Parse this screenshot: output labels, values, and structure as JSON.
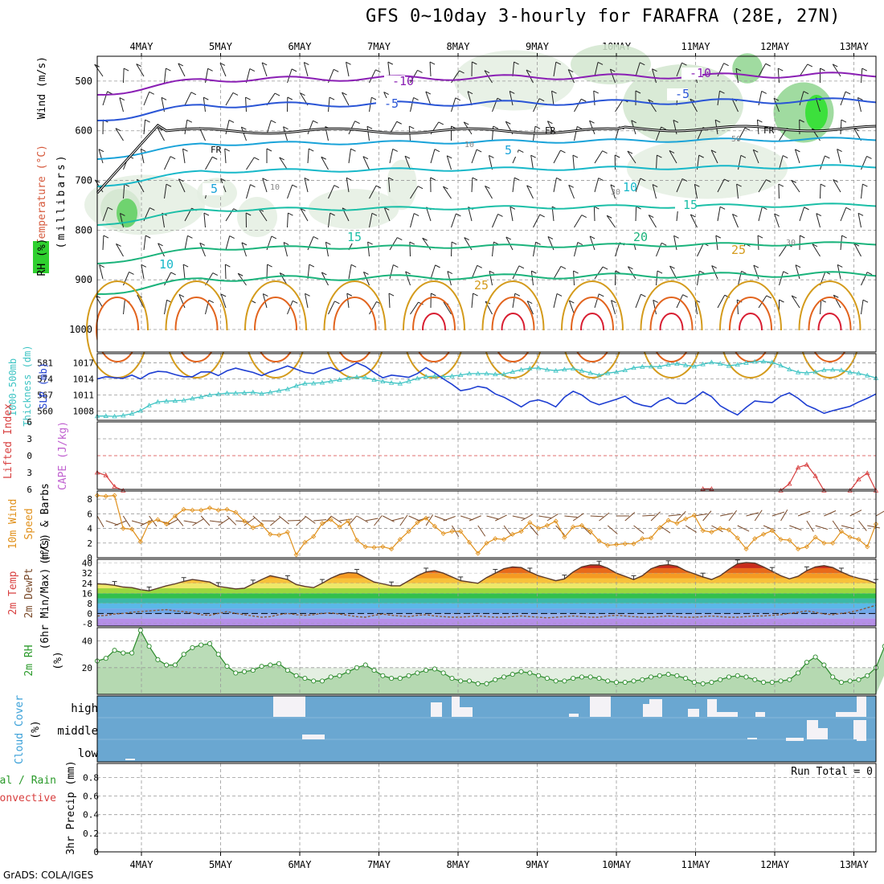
{
  "title": "GFS 0~10day 3-hourly for FARAFRA (28E, 27N)",
  "footer": "GrADS: COLA/IGES",
  "date_labels": [
    "4MAY",
    "5MAY",
    "6MAY",
    "7MAY",
    "8MAY",
    "9MAY",
    "10MAY",
    "11MAY",
    "12MAY",
    "13MAY"
  ],
  "chart_data": [
    {
      "type": "heatmap",
      "name": "pressure-profile",
      "ylabel_parts": [
        "Wind (m/s)",
        "Temperature (°C)",
        "RH (%)"
      ],
      "y_axis_label": "(millibars)",
      "y_ticks": [
        500,
        600,
        700,
        800,
        900,
        1000
      ],
      "ylim": [
        450,
        1000
      ],
      "freezing_label": "FR",
      "isotherm_labels": [
        {
          "text": "-10",
          "value": -10
        },
        {
          "text": "-5",
          "value": -5
        },
        {
          "text": "5",
          "value": 5
        },
        {
          "text": "10",
          "value": 10
        },
        {
          "text": "15",
          "value": 15
        },
        {
          "text": "20",
          "value": 20
        },
        {
          "text": "25",
          "value": 25
        }
      ],
      "rh_labels": [
        "10",
        "30",
        "50"
      ],
      "colors": {
        "m10": "#8a1fb4",
        "m5": "#2a55d6",
        "t5": "#1aa3d9",
        "t10": "#17b8c9",
        "t15": "#1bbfa7",
        "t20": "#1ab37b",
        "t25": "#d49b1c",
        "t30": "#e2641e",
        "t35": "#d81e32"
      }
    },
    {
      "type": "line",
      "name": "thickness-slp",
      "ylabel_left": "Thickness (dm)",
      "ylabel_left2": "1000-500mb",
      "ylabel_right": "SLP (mb)",
      "left_ticks": [
        560,
        567,
        574,
        581
      ],
      "right_ticks": [
        1008,
        1011,
        1014,
        1017
      ],
      "thickness_ylim": [
        556,
        585
      ],
      "slp_ylim": [
        1006.3,
        1018.7
      ],
      "thickness": [
        557.8,
        557.9,
        557.7,
        558.1,
        558.9,
        560.2,
        562.5,
        564.0,
        564.3,
        564.5,
        564.7,
        565.5,
        566.2,
        567.0,
        567.4,
        567.8,
        567.8,
        568.0,
        568.2,
        567.6,
        568.2,
        568.9,
        569.6,
        571.0,
        572.0,
        572.1,
        572.4,
        573.0,
        573.6,
        574.4,
        574.8,
        574.6,
        573.6,
        572.9,
        572.3,
        572.0,
        573.0,
        574.2,
        575.0,
        575.2,
        574.9,
        575.2,
        575.7,
        576.3,
        576.3,
        576.3,
        576.0,
        576.1,
        577.1,
        578.0,
        578.6,
        578.7,
        578.0,
        577.6,
        578.1,
        578.5,
        577.6,
        576.6,
        575.6,
        576.5,
        577.0,
        577.8,
        578.8,
        579.3,
        579.4,
        579.3,
        580.3,
        580.6,
        580.0,
        579.4,
        580.4,
        581.2,
        580.6,
        579.7,
        580.2,
        581.0,
        581.5,
        581.6,
        581.2,
        579.8,
        578.2,
        576.9,
        576.6,
        577.0,
        577.9,
        578.0,
        577.8,
        576.9,
        576.4,
        575.5,
        574.4
      ],
      "slp": [
        1014.0,
        1014.4,
        1014.2,
        1014.1,
        1014.7,
        1014.0,
        1015.0,
        1015.4,
        1015.3,
        1014.8,
        1014.4,
        1014.4,
        1015.3,
        1015.3,
        1014.6,
        1015.5,
        1016.0,
        1015.6,
        1015.2,
        1014.6,
        1015.3,
        1015.8,
        1016.4,
        1015.8,
        1015.2,
        1015.0,
        1015.7,
        1016.1,
        1015.4,
        1016.1,
        1017.0,
        1016.3,
        1015.2,
        1014.2,
        1014.7,
        1014.5,
        1014.3,
        1015.0,
        1016.1,
        1015.1,
        1014.0,
        1013.0,
        1011.8,
        1012.1,
        1012.6,
        1012.3,
        1011.2,
        1010.6,
        1009.7,
        1008.8,
        1009.8,
        1010.1,
        1009.6,
        1008.8,
        1010.6,
        1011.7,
        1011.0,
        1009.8,
        1009.2,
        1009.7,
        1010.2,
        1010.8,
        1009.6,
        1009.1,
        1008.8,
        1009.9,
        1010.5,
        1009.5,
        1009.4,
        1010.4,
        1011.6,
        1010.7,
        1009.0,
        1008.1,
        1007.3,
        1008.7,
        1009.9,
        1009.7,
        1009.6,
        1010.8,
        1011.4,
        1010.4,
        1009.1,
        1008.4,
        1007.6,
        1008.1,
        1008.5,
        1008.9,
        1009.7,
        1010.4,
        1011.2
      ]
    },
    {
      "type": "line",
      "name": "cape-lifted-index",
      "ylabel_a": "Lifted Index",
      "ylabel_b": "CAPE (J/kg)",
      "y_ticks": [
        -6,
        -3,
        0,
        3,
        6
      ],
      "ylim": [
        -6,
        6
      ],
      "lifted_index": [
        3.0,
        3.5,
        5.5,
        6.2,
        null,
        null,
        null,
        null,
        null,
        null,
        null,
        null,
        null,
        null,
        null,
        null,
        null,
        null,
        null,
        null,
        null,
        null,
        null,
        null,
        null,
        null,
        null,
        null,
        null,
        null,
        null,
        null,
        null,
        null,
        null,
        null,
        null,
        null,
        null,
        null,
        null,
        null,
        null,
        null,
        null,
        null,
        null,
        null,
        null,
        null,
        null,
        null,
        null,
        null,
        null,
        null,
        null,
        null,
        null,
        null,
        null,
        null,
        null,
        null,
        null,
        null,
        null,
        null,
        null,
        null,
        null,
        null,
        null,
        null,
        null,
        null,
        null,
        null,
        null,
        null,
        null,
        null,
        null,
        null,
        null,
        null,
        null,
        null,
        null,
        null,
        null
      ],
      "lifted_index_segments": [
        {
          "start": 0,
          "values": [
            3.0,
            3.5,
            5.5,
            6.2
          ]
        },
        {
          "start": 70,
          "values": [
            5.9,
            5.9
          ]
        },
        {
          "start": 79,
          "values": [
            6.2,
            5.0,
            2.1,
            1.6,
            3.6,
            6.2
          ]
        },
        {
          "start": 87,
          "values": [
            6.2,
            4.2,
            3.1,
            6.2
          ]
        }
      ]
    },
    {
      "type": "line",
      "name": "wind-10m",
      "ylabel_parts": [
        "10m Wind",
        "Speed",
        "(m/s) & Barbs"
      ],
      "y_ticks": [
        0,
        2,
        4,
        6,
        8
      ],
      "ylim": [
        0,
        9
      ],
      "values": [
        8.5,
        8.4,
        8.5,
        4.0,
        3.9,
        2.2,
        4.8,
        5.2,
        4.6,
        5.7,
        6.6,
        6.5,
        6.5,
        6.8,
        6.5,
        6.6,
        6.2,
        5.0,
        4.1,
        4.5,
        3.2,
        3.1,
        3.5,
        0.4,
        2.1,
        2.9,
        4.7,
        5.2,
        4.2,
        5.0,
        2.4,
        1.5,
        1.4,
        1.5,
        1.2,
        2.5,
        3.6,
        4.8,
        5.4,
        4.3,
        3.3,
        3.6,
        3.6,
        2.1,
        0.6,
        2.0,
        2.6,
        2.5,
        3.2,
        3.6,
        4.8,
        4.0,
        4.4,
        5.0,
        2.8,
        4.2,
        4.4,
        3.6,
        2.3,
        1.7,
        1.8,
        1.9,
        1.9,
        2.6,
        2.7,
        4.1,
        5.1,
        4.7,
        5.3,
        5.8,
        3.7,
        3.5,
        4.0,
        3.8,
        2.7,
        1.2,
        2.6,
        3.2,
        3.7,
        2.5,
        2.4,
        1.2,
        1.5,
        2.8,
        2.0,
        2.0,
        3.6,
        2.8,
        2.5,
        1.5,
        4.6
      ]
    },
    {
      "type": "area",
      "name": "temperature-2m",
      "ylabel_parts": [
        "2m Temp",
        "2m DewPt",
        "(6hr Min/Max) (°C)"
      ],
      "y_ticks": [
        -8,
        0,
        8,
        16,
        24,
        32,
        40
      ],
      "ylim": [
        -10,
        43
      ],
      "temp": [
        23.5,
        23.2,
        22.4,
        21.0,
        20.5,
        18.9,
        18.0,
        20.0,
        22.0,
        23.5,
        25.5,
        27.0,
        26.0,
        25.0,
        21.5,
        20.5,
        19.5,
        20.0,
        23.5,
        27.0,
        30.0,
        28.5,
        27.0,
        23.0,
        21.5,
        20.5,
        24.0,
        28.0,
        31.0,
        32.5,
        32.0,
        28.5,
        25.0,
        23.5,
        22.0,
        22.0,
        26.0,
        30.0,
        33.0,
        34.0,
        32.0,
        29.0,
        26.0,
        25.0,
        24.0,
        28.5,
        32.0,
        35.5,
        37.0,
        36.5,
        33.0,
        30.0,
        28.0,
        26.0,
        27.5,
        33.0,
        37.0,
        38.5,
        38.5,
        36.0,
        32.0,
        29.5,
        27.0,
        30.0,
        35.5,
        38.0,
        38.8,
        37.5,
        34.0,
        31.5,
        29.0,
        27.0,
        30.0,
        35.0,
        39.5,
        40.5,
        40.0,
        37.0,
        33.5,
        30.0,
        27.5,
        29.5,
        34.0,
        37.0,
        38.0,
        36.5,
        33.0,
        30.0,
        28.0,
        26.5,
        24.0
      ],
      "dewpt": [
        -2.0,
        -1.5,
        -0.5,
        0.0,
        1.0,
        1.5,
        2.0,
        2.5,
        3.0,
        2.0,
        1.5,
        0.5,
        -1.0,
        -1.5,
        0.0,
        1.5,
        0.0,
        -1.0,
        -2.0,
        -3.0,
        -2.5,
        -1.0,
        0.0,
        -1.0,
        -1.5,
        -1.0,
        0.0,
        0.5,
        -0.5,
        -1.5,
        -2.5,
        -3.0,
        -1.5,
        -0.5,
        -1.5,
        -2.0,
        -2.5,
        -1.5,
        -1.0,
        -2.0,
        -2.5,
        -3.0,
        -3.0,
        -2.5,
        -2.0,
        -2.5,
        -3.0,
        -3.0,
        -2.5,
        -2.0,
        -2.5,
        -3.0,
        -3.5,
        -3.0,
        -2.5,
        -2.0,
        -2.5,
        -3.0,
        -3.0,
        -2.0,
        -1.5,
        -2.0,
        -2.5,
        -3.0,
        -3.0,
        -2.5,
        -2.0,
        -2.5,
        -3.0,
        -3.0,
        -2.5,
        -2.0,
        -2.5,
        -3.0,
        -3.0,
        -2.5,
        -2.0,
        -2.0,
        -1.5,
        -1.0,
        0.0,
        1.0,
        2.0,
        1.0,
        -0.5,
        -1.0,
        0.0,
        1.0,
        2.5,
        4.5,
        6.5
      ]
    },
    {
      "type": "area",
      "name": "rh-2m",
      "ylabel": "2m RH",
      "unit": "(%)",
      "y_ticks": [
        20,
        40
      ],
      "ylim": [
        0,
        50
      ],
      "values": [
        25,
        27,
        33,
        31,
        31,
        48,
        36,
        26,
        22,
        22,
        30,
        35,
        37,
        38,
        30,
        21,
        16,
        17,
        18,
        21,
        22,
        23,
        18,
        14,
        12,
        10,
        10,
        13,
        14,
        17,
        20,
        22,
        18,
        14,
        12,
        12,
        14,
        16,
        18,
        19,
        16,
        12,
        10,
        10,
        8,
        8,
        11,
        13,
        15,
        17,
        16,
        14,
        12,
        10,
        10,
        12,
        13,
        13,
        12,
        10,
        9,
        9,
        10,
        11,
        13,
        14,
        15,
        14,
        12,
        9,
        8,
        9,
        11,
        13,
        14,
        13,
        11,
        9,
        9,
        10,
        11,
        16,
        24,
        28,
        22,
        13,
        9,
        10,
        11,
        14,
        20,
        36,
        30
      ]
    },
    {
      "type": "table",
      "name": "cloud-cover",
      "ylabel": "Cloud Cover",
      "unit": "(%)",
      "levels": [
        "high",
        "middle",
        "low"
      ],
      "colors": {
        "bg": "#6aa7d1",
        "gap": "#f4f2f6"
      }
    },
    {
      "type": "bar",
      "name": "precip-3hr",
      "ylabel": "3hr Precip (mm)",
      "legend_a": "Total / Rain",
      "legend_b": "Convective",
      "run_total": "Run Total = 0",
      "y_ticks": [
        0,
        0.2,
        0.4,
        0.6,
        0.8
      ],
      "ylim": [
        0,
        0.95
      ],
      "values": []
    }
  ]
}
